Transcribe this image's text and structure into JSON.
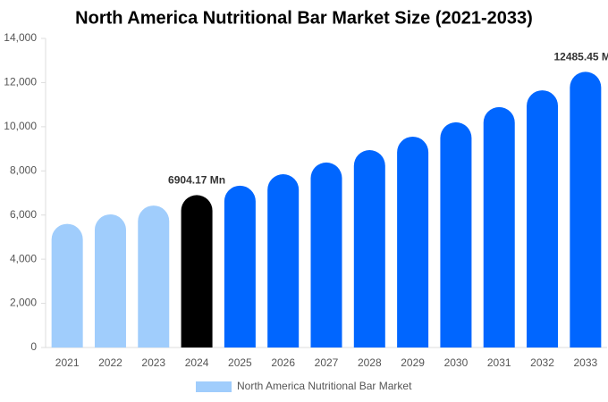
{
  "chart_data": {
    "type": "bar",
    "title": "North America Nutritional Bar Market Size (2021-2033)",
    "categories": [
      "2021",
      "2022",
      "2023",
      "2024",
      "2025",
      "2026",
      "2027",
      "2028",
      "2029",
      "2030",
      "2031",
      "2032",
      "2033"
    ],
    "series": [
      {
        "name": "North America Nutritional Bar Market",
        "color": "#a0cdfc",
        "colors": [
          "#a0cdfc",
          "#a0cdfc",
          "#a0cdfc",
          "#000000",
          "#0066ff",
          "#0066ff",
          "#0066ff",
          "#0066ff",
          "#0066ff",
          "#0066ff",
          "#0066ff",
          "#0066ff",
          "#0066ff"
        ],
        "values": [
          5600,
          6030,
          6430,
          6904.17,
          7330,
          7850,
          8380,
          8940,
          9550,
          10200,
          10890,
          11650,
          12485.45
        ],
        "value_labels": [
          null,
          null,
          null,
          "6904.17 Mn",
          null,
          null,
          null,
          null,
          null,
          null,
          null,
          null,
          "12485.45 Mn"
        ]
      }
    ],
    "ylim": [
      0,
      14000
    ],
    "yticks": [
      0,
      {
        "value": 2000,
        "label": "2,000"
      },
      {
        "value": 4000,
        "label": "4,000"
      },
      {
        "value": 6000,
        "label": "6,000"
      },
      {
        "value": 8000,
        "label": "8,000"
      },
      {
        "value": 10000,
        "label": "10,000"
      },
      {
        "value": 12000,
        "label": "12,000"
      },
      {
        "value": 14000,
        "label": "14,000"
      }
    ],
    "legend": "bottom"
  }
}
